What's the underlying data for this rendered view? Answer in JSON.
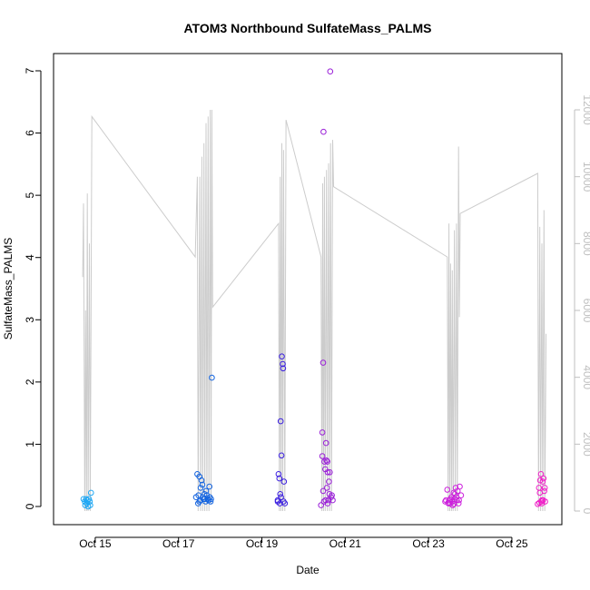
{
  "chart_data": {
    "type": "scatter",
    "title": "ATOM3 Northbound SulfateMass_PALMS",
    "xlabel": "Date",
    "ylabel": "SulfateMass_PALMS",
    "x_tick_labels": [
      "Oct 15",
      "Oct 17",
      "Oct 19",
      "Oct 21",
      "Oct 23",
      "Oct 25"
    ],
    "x_tick_values": [
      15,
      17,
      19,
      21,
      23,
      25
    ],
    "xlim": [
      14.0,
      26.2
    ],
    "ylim": [
      0,
      7
    ],
    "y_ticks": [
      0,
      1,
      2,
      3,
      4,
      5,
      6,
      7
    ],
    "y2_ticks": [
      0,
      2000,
      4000,
      6000,
      8000,
      10000,
      12000
    ],
    "y2lim": [
      0,
      12000
    ],
    "grid": false,
    "colors": {
      "altitude_line": "#cccccc",
      "right_axis": "#bfbfbf",
      "axis": "#000000"
    },
    "series": [
      {
        "color": "#1ea8f5",
        "points": [
          [
            14.72,
            0.12
          ],
          [
            14.75,
            0.08
          ],
          [
            14.76,
            0.02
          ],
          [
            14.78,
            0.12
          ],
          [
            14.8,
            0.05
          ],
          [
            14.81,
            0.1
          ],
          [
            14.83,
            0.0
          ],
          [
            14.85,
            0.12
          ],
          [
            14.87,
            0.08
          ],
          [
            14.9,
            0.22
          ],
          [
            14.88,
            0.02
          ]
        ]
      },
      {
        "color": "#1565e0",
        "points": [
          [
            17.45,
            0.52
          ],
          [
            17.48,
            0.18
          ],
          [
            17.5,
            0.48
          ],
          [
            17.52,
            0.1
          ],
          [
            17.55,
            0.42
          ],
          [
            17.57,
            0.35
          ],
          [
            17.6,
            0.12
          ],
          [
            17.62,
            0.2
          ],
          [
            17.65,
            0.08
          ],
          [
            17.68,
            0.18
          ],
          [
            17.7,
            0.12
          ],
          [
            17.72,
            0.1
          ],
          [
            17.75,
            0.15
          ],
          [
            17.78,
            0.12
          ],
          [
            17.8,
            2.07
          ],
          [
            17.47,
            0.05
          ],
          [
            17.53,
            0.3
          ],
          [
            17.58,
            0.15
          ],
          [
            17.66,
            0.25
          ],
          [
            17.74,
            0.32
          ],
          [
            17.42,
            0.15
          ],
          [
            17.5,
            0.08
          ],
          [
            17.63,
            0.12
          ],
          [
            17.77,
            0.08
          ]
        ]
      },
      {
        "color": "#3b1fe0",
        "points": [
          [
            19.38,
            0.08
          ],
          [
            19.4,
            0.52
          ],
          [
            19.42,
            0.45
          ],
          [
            19.44,
            0.2
          ],
          [
            19.45,
            1.37
          ],
          [
            19.47,
            0.82
          ],
          [
            19.48,
            2.41
          ],
          [
            19.5,
            2.29
          ],
          [
            19.51,
            2.22
          ],
          [
            19.53,
            0.4
          ],
          [
            19.55,
            0.05
          ],
          [
            19.38,
            0.1
          ],
          [
            19.43,
            0.05
          ],
          [
            19.46,
            0.15
          ],
          [
            19.52,
            0.08
          ]
        ]
      },
      {
        "color": "#9a1fd8",
        "points": [
          [
            20.42,
            0.02
          ],
          [
            20.45,
            1.19
          ],
          [
            20.47,
            2.31
          ],
          [
            20.48,
            6.02
          ],
          [
            20.45,
            0.81
          ],
          [
            20.5,
            0.72
          ],
          [
            20.52,
            0.6
          ],
          [
            20.54,
            1.02
          ],
          [
            20.55,
            0.74
          ],
          [
            20.57,
            0.72
          ],
          [
            20.58,
            0.55
          ],
          [
            20.6,
            0.1
          ],
          [
            20.62,
            0.2
          ],
          [
            20.64,
            6.99
          ],
          [
            20.66,
            0.15
          ],
          [
            20.68,
            0.18
          ],
          [
            20.7,
            0.1
          ],
          [
            20.58,
            0.05
          ],
          [
            20.63,
            0.55
          ],
          [
            20.53,
            0.1
          ],
          [
            20.47,
            0.25
          ],
          [
            20.49,
            0.08
          ],
          [
            20.56,
            0.3
          ],
          [
            20.61,
            0.4
          ]
        ]
      },
      {
        "color": "#cc20dc",
        "points": [
          [
            23.4,
            0.08
          ],
          [
            23.45,
            0.27
          ],
          [
            23.5,
            0.1
          ],
          [
            23.52,
            0.05
          ],
          [
            23.55,
            0.15
          ],
          [
            23.58,
            0.02
          ],
          [
            23.6,
            0.22
          ],
          [
            23.62,
            0.12
          ],
          [
            23.65,
            0.3
          ],
          [
            23.68,
            0.1
          ],
          [
            23.7,
            0.25
          ],
          [
            23.72,
            0.05
          ],
          [
            23.75,
            0.32
          ],
          [
            23.78,
            0.18
          ],
          [
            23.48,
            0.05
          ],
          [
            23.53,
            0.12
          ],
          [
            23.57,
            0.08
          ],
          [
            23.63,
            0.2
          ],
          [
            23.67,
            0.15
          ],
          [
            23.42,
            0.1
          ],
          [
            23.47,
            0.06
          ],
          [
            23.61,
            0.04
          ],
          [
            23.73,
            0.1
          ]
        ]
      },
      {
        "color": "#f020c8",
        "points": [
          [
            25.62,
            0.04
          ],
          [
            25.65,
            0.3
          ],
          [
            25.68,
            0.42
          ],
          [
            25.7,
            0.52
          ],
          [
            25.72,
            0.1
          ],
          [
            25.74,
            0.4
          ],
          [
            25.76,
            0.45
          ],
          [
            25.78,
            0.25
          ],
          [
            25.8,
            0.08
          ],
          [
            25.66,
            0.06
          ],
          [
            25.72,
            0.05
          ],
          [
            25.75,
            0.1
          ],
          [
            25.67,
            0.22
          ],
          [
            25.71,
            0.08
          ],
          [
            25.79,
            0.3
          ]
        ]
      }
    ],
    "altitude_line": [
      [
        14.7,
        7000
      ],
      [
        14.72,
        9200
      ],
      [
        14.75,
        0
      ],
      [
        14.77,
        6000
      ],
      [
        14.79,
        0
      ],
      [
        14.81,
        9500
      ],
      [
        14.83,
        0
      ],
      [
        14.86,
        8000
      ],
      [
        14.88,
        0
      ],
      [
        14.92,
        11800
      ],
      [
        17.4,
        7600
      ],
      [
        17.45,
        10000
      ],
      [
        17.47,
        0
      ],
      [
        17.49,
        5200
      ],
      [
        17.51,
        10000
      ],
      [
        17.53,
        0
      ],
      [
        17.56,
        10600
      ],
      [
        17.58,
        0
      ],
      [
        17.61,
        11000
      ],
      [
        17.63,
        0
      ],
      [
        17.66,
        11600
      ],
      [
        17.68,
        0
      ],
      [
        17.71,
        11800
      ],
      [
        17.73,
        0
      ],
      [
        17.76,
        12000
      ],
      [
        17.78,
        200
      ],
      [
        17.8,
        12000
      ],
      [
        17.82,
        6100
      ],
      [
        19.4,
        8600
      ],
      [
        19.42,
        0
      ],
      [
        19.44,
        10000
      ],
      [
        19.46,
        0
      ],
      [
        19.48,
        11000
      ],
      [
        19.5,
        0
      ],
      [
        19.52,
        10800
      ],
      [
        19.55,
        0
      ],
      [
        19.58,
        11700
      ],
      [
        20.42,
        7600
      ],
      [
        20.44,
        0
      ],
      [
        20.46,
        9800
      ],
      [
        20.48,
        0
      ],
      [
        20.5,
        10000
      ],
      [
        20.52,
        0
      ],
      [
        20.55,
        10200
      ],
      [
        20.57,
        0
      ],
      [
        20.6,
        10400
      ],
      [
        20.62,
        0
      ],
      [
        20.65,
        11000
      ],
      [
        20.67,
        0
      ],
      [
        20.7,
        11100
      ],
      [
        20.72,
        9700
      ],
      [
        23.45,
        7600
      ],
      [
        23.47,
        0
      ],
      [
        23.49,
        8600
      ],
      [
        23.51,
        0
      ],
      [
        23.53,
        7400
      ],
      [
        23.55,
        0
      ],
      [
        23.57,
        7200
      ],
      [
        23.59,
        0
      ],
      [
        23.62,
        8400
      ],
      [
        23.64,
        0
      ],
      [
        23.67,
        8600
      ],
      [
        23.69,
        0
      ],
      [
        23.72,
        10900
      ],
      [
        23.74,
        5800
      ],
      [
        23.76,
        8900
      ],
      [
        25.62,
        10100
      ],
      [
        25.64,
        0
      ],
      [
        25.67,
        8500
      ],
      [
        25.69,
        0
      ],
      [
        25.72,
        8000
      ],
      [
        25.74,
        0
      ],
      [
        25.77,
        9000
      ],
      [
        25.79,
        0
      ],
      [
        25.82,
        5300
      ]
    ]
  }
}
